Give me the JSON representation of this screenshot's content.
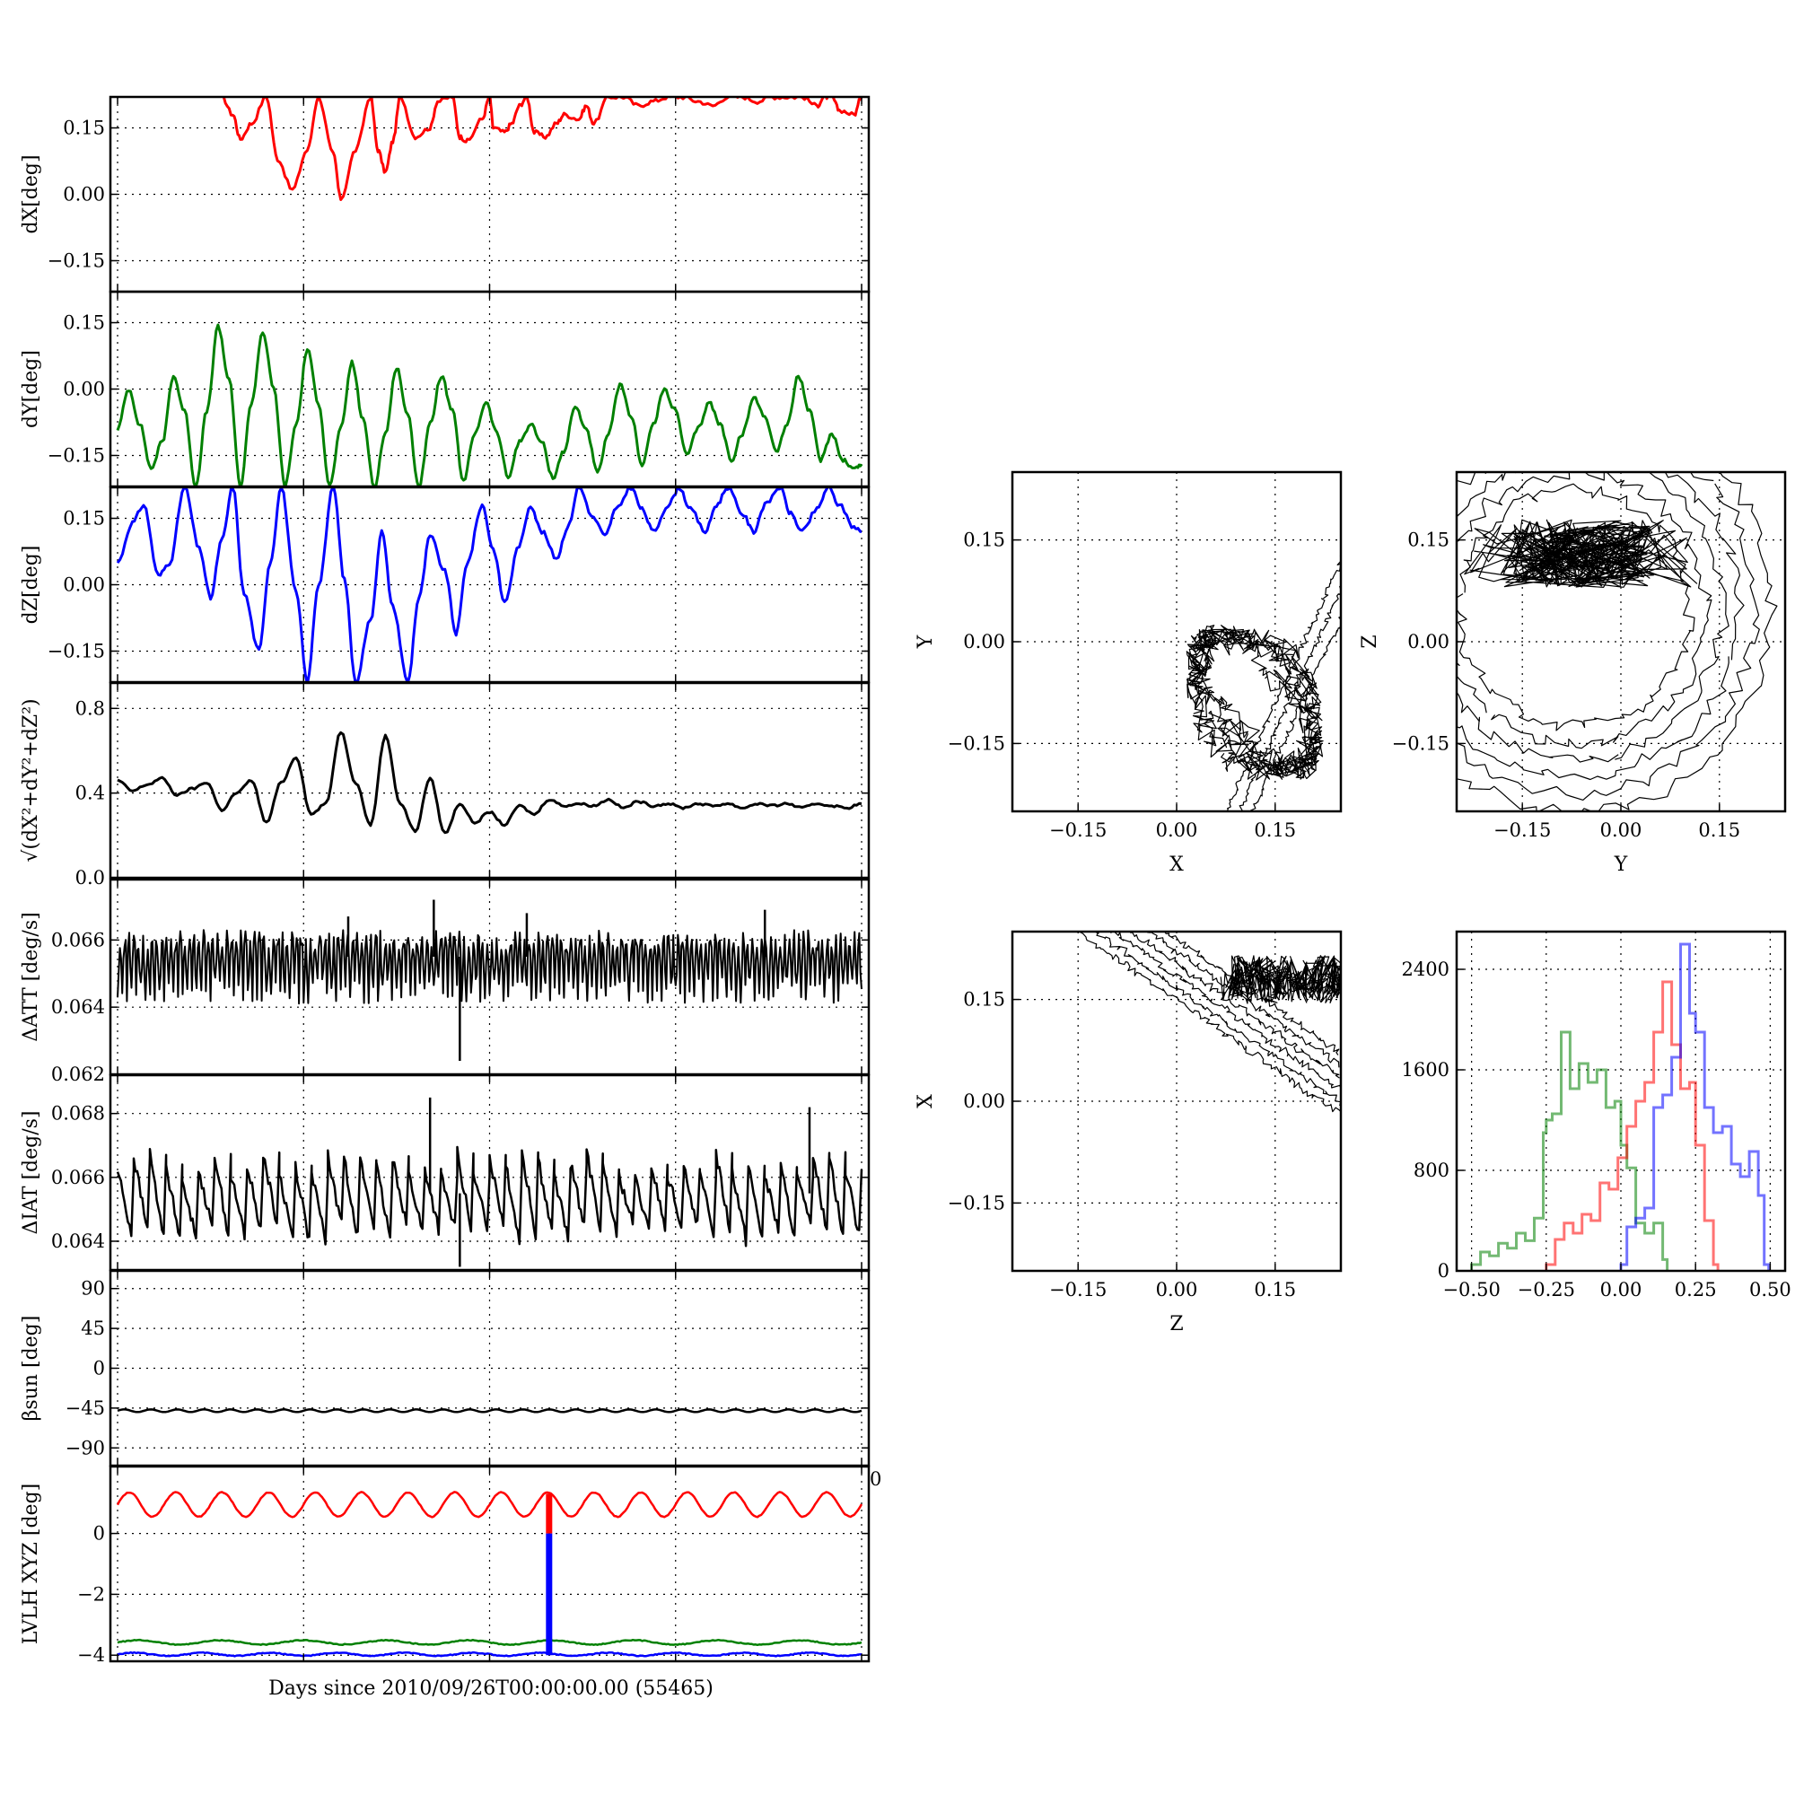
{
  "xlabel": "Days since 2010/09/26T00:00:00.00 (55465)",
  "stray_tick_label": "0",
  "colors": {
    "x": "#ff0000",
    "y": "#008000",
    "z": "#0000ff",
    "k": "#000000"
  },
  "chart_data": [
    {
      "type": "line",
      "id": "dX",
      "ylabel": "dX[deg]",
      "ylim": [
        -0.22,
        0.22
      ],
      "yticks": [
        -0.15,
        0.0,
        0.15
      ],
      "ytick_labels": [
        "−0.15",
        "0.00",
        "0.15"
      ],
      "xlim": [
        0,
        1
      ],
      "grid": true,
      "series": [
        {
          "color_key": "x",
          "x": [
            0.14,
            0.155,
            0.165,
            0.18,
            0.2,
            0.215,
            0.235,
            0.255,
            0.27,
            0.29,
            0.3,
            0.32,
            0.34,
            0.35,
            0.36,
            0.37,
            0.38,
            0.4,
            0.42,
            0.43,
            0.45,
            0.46,
            0.47,
            0.49,
            0.5,
            0.505,
            0.52,
            0.53,
            0.54,
            0.55,
            0.56,
            0.575,
            0.59,
            0.6,
            0.62,
            0.63,
            0.64,
            0.66,
            0.68,
            0.7,
            0.72,
            0.74,
            0.76,
            0.78,
            0.8,
            0.82,
            0.84,
            0.86,
            0.88,
            0.9,
            0.92,
            0.94,
            0.95,
            0.96,
            0.97,
            0.99,
            1.0
          ],
          "y": [
            0.22,
            0.18,
            0.125,
            0.16,
            0.22,
            0.08,
            0.01,
            0.1,
            0.22,
            0.09,
            -0.01,
            0.1,
            0.22,
            0.1,
            0.05,
            0.12,
            0.22,
            0.13,
            0.15,
            0.21,
            0.22,
            0.13,
            0.12,
            0.17,
            0.22,
            0.15,
            0.14,
            0.16,
            0.2,
            0.22,
            0.14,
            0.13,
            0.16,
            0.18,
            0.17,
            0.2,
            0.16,
            0.22,
            0.22,
            0.2,
            0.21,
            0.22,
            0.22,
            0.21,
            0.2,
            0.22,
            0.22,
            0.21,
            0.22,
            0.22,
            0.22,
            0.2,
            0.22,
            0.22,
            0.19,
            0.18,
            0.22
          ]
        }
      ]
    },
    {
      "type": "line",
      "id": "dY",
      "ylabel": "dY[deg]",
      "ylim": [
        -0.22,
        0.22
      ],
      "yticks": [
        -0.15,
        0.0,
        0.15
      ],
      "ytick_labels": [
        "−0.15",
        "0.00",
        "0.15"
      ],
      "xlim": [
        0,
        1
      ],
      "grid": true,
      "series": [
        {
          "color_key": "y",
          "x": [
            0,
            0.015,
            0.03,
            0.045,
            0.06,
            0.075,
            0.09,
            0.105,
            0.12,
            0.135,
            0.15,
            0.165,
            0.18,
            0.195,
            0.21,
            0.225,
            0.24,
            0.255,
            0.27,
            0.285,
            0.3,
            0.315,
            0.33,
            0.345,
            0.36,
            0.375,
            0.39,
            0.405,
            0.42,
            0.435,
            0.45,
            0.465,
            0.48,
            0.495,
            0.51,
            0.525,
            0.54,
            0.555,
            0.57,
            0.585,
            0.6,
            0.615,
            0.63,
            0.645,
            0.66,
            0.675,
            0.69,
            0.705,
            0.72,
            0.735,
            0.75,
            0.765,
            0.78,
            0.795,
            0.81,
            0.825,
            0.84,
            0.855,
            0.87,
            0.885,
            0.9,
            0.915,
            0.93,
            0.945,
            0.96,
            0.975,
            0.99,
            1.0
          ],
          "y": [
            -0.09,
            0.0,
            -0.08,
            -0.18,
            -0.12,
            0.03,
            -0.05,
            -0.22,
            -0.05,
            0.14,
            0.02,
            -0.22,
            -0.03,
            0.13,
            0.0,
            -0.22,
            -0.08,
            0.09,
            -0.03,
            -0.22,
            -0.09,
            0.06,
            -0.07,
            -0.22,
            -0.1,
            0.05,
            -0.06,
            -0.22,
            -0.08,
            0.03,
            -0.05,
            -0.21,
            -0.1,
            -0.03,
            -0.1,
            -0.2,
            -0.12,
            -0.08,
            -0.12,
            -0.2,
            -0.14,
            -0.04,
            -0.09,
            -0.19,
            -0.1,
            0.01,
            -0.06,
            -0.17,
            -0.08,
            0.0,
            -0.05,
            -0.15,
            -0.09,
            -0.03,
            -0.08,
            -0.16,
            -0.1,
            -0.02,
            -0.06,
            -0.14,
            -0.08,
            0.03,
            -0.05,
            -0.16,
            -0.1,
            -0.16,
            -0.18,
            -0.17
          ]
        }
      ]
    },
    {
      "type": "line",
      "id": "dZ",
      "ylabel": "dZ[deg]",
      "ylim": [
        -0.22,
        0.22
      ],
      "yticks": [
        -0.15,
        0.0,
        0.15
      ],
      "ytick_labels": [
        "−0.15",
        "0.00",
        "0.15"
      ],
      "xlim": [
        0,
        1
      ],
      "grid": true,
      "series": [
        {
          "color_key": "z",
          "x": [
            0,
            0.02,
            0.035,
            0.055,
            0.07,
            0.09,
            0.11,
            0.125,
            0.14,
            0.155,
            0.17,
            0.19,
            0.205,
            0.22,
            0.24,
            0.255,
            0.27,
            0.29,
            0.305,
            0.32,
            0.34,
            0.355,
            0.37,
            0.39,
            0.405,
            0.42,
            0.44,
            0.455,
            0.47,
            0.49,
            0.505,
            0.52,
            0.54,
            0.555,
            0.57,
            0.59,
            0.605,
            0.62,
            0.64,
            0.655,
            0.67,
            0.69,
            0.705,
            0.72,
            0.74,
            0.755,
            0.77,
            0.79,
            0.805,
            0.82,
            0.84,
            0.855,
            0.87,
            0.89,
            0.905,
            0.92,
            0.94,
            0.955,
            0.97,
            0.99,
            1.0
          ],
          "y": [
            0.05,
            0.14,
            0.18,
            0.02,
            0.05,
            0.22,
            0.08,
            -0.03,
            0.1,
            0.22,
            -0.02,
            -0.15,
            0.05,
            0.22,
            -0.02,
            -0.22,
            0.0,
            0.22,
            0.01,
            -0.22,
            -0.08,
            0.12,
            -0.05,
            -0.22,
            -0.03,
            0.11,
            0.03,
            -0.11,
            0.05,
            0.18,
            0.08,
            -0.04,
            0.09,
            0.18,
            0.12,
            0.06,
            0.13,
            0.22,
            0.15,
            0.11,
            0.17,
            0.22,
            0.17,
            0.12,
            0.18,
            0.22,
            0.17,
            0.12,
            0.18,
            0.22,
            0.16,
            0.12,
            0.18,
            0.22,
            0.16,
            0.12,
            0.17,
            0.22,
            0.18,
            0.13,
            0.12
          ]
        }
      ]
    },
    {
      "type": "line",
      "id": "dR",
      "ylabel": "√(dX²+dY²+dZ²)",
      "ylim": [
        0.0,
        0.92
      ],
      "yticks": [
        0.0,
        0.4,
        0.8
      ],
      "ytick_labels": [
        "0.0",
        "0.4",
        "0.8"
      ],
      "xlim": [
        0,
        1
      ],
      "grid": true,
      "series": [
        {
          "color_key": "k",
          "x": [
            0,
            0.02,
            0.04,
            0.06,
            0.08,
            0.1,
            0.12,
            0.14,
            0.16,
            0.18,
            0.2,
            0.22,
            0.24,
            0.26,
            0.28,
            0.3,
            0.32,
            0.34,
            0.36,
            0.38,
            0.4,
            0.42,
            0.44,
            0.46,
            0.48,
            0.5,
            0.52,
            0.54,
            0.56,
            0.58,
            0.6,
            0.62,
            0.64,
            0.66,
            0.68,
            0.7,
            0.72,
            0.74,
            0.76,
            0.78,
            0.8,
            0.82,
            0.84,
            0.86,
            0.88,
            0.9,
            0.92,
            0.94,
            0.96,
            0.98,
            1.0
          ],
          "y": [
            0.46,
            0.41,
            0.44,
            0.47,
            0.39,
            0.42,
            0.45,
            0.32,
            0.4,
            0.46,
            0.26,
            0.45,
            0.57,
            0.3,
            0.35,
            0.69,
            0.45,
            0.25,
            0.67,
            0.35,
            0.22,
            0.47,
            0.21,
            0.35,
            0.26,
            0.31,
            0.25,
            0.34,
            0.3,
            0.37,
            0.34,
            0.35,
            0.34,
            0.37,
            0.33,
            0.36,
            0.34,
            0.35,
            0.33,
            0.35,
            0.34,
            0.35,
            0.33,
            0.35,
            0.34,
            0.35,
            0.33,
            0.35,
            0.34,
            0.33,
            0.35
          ]
        }
      ]
    },
    {
      "type": "line",
      "id": "dATT",
      "ylabel": "ΔATT [deg/s]",
      "ylim": [
        0.062,
        0.0678
      ],
      "yticks": [
        0.062,
        0.064,
        0.066
      ],
      "ytick_labels": [
        "0.062",
        "0.064",
        "0.066"
      ],
      "xlim": [
        0,
        1
      ],
      "grid": true,
      "noise": {
        "color_key": "k",
        "center": 0.0655,
        "lower": 0.0641,
        "upper": 0.0663,
        "periods": 160,
        "spikes": [
          [
            0.46,
            0.0624
          ],
          [
            0.425,
            0.0672
          ],
          [
            0.87,
            0.0669
          ],
          [
            0.31,
            0.0667
          ],
          [
            0.55,
            0.0668
          ]
        ]
      }
    },
    {
      "type": "line",
      "id": "dIAT",
      "ylabel": "ΔIAT [deg/s]",
      "ylim": [
        0.0631,
        0.0692
      ],
      "yticks": [
        0.064,
        0.066,
        0.068
      ],
      "ytick_labels": [
        "0.064",
        "0.066",
        "0.068"
      ],
      "xlim": [
        0,
        1
      ],
      "grid": true,
      "sawtooth": {
        "color_key": "k",
        "low": 0.064,
        "high": 0.0668,
        "cycles": 46,
        "spikes": [
          [
            0.46,
            0.0632
          ],
          [
            0.42,
            0.0685
          ],
          [
            0.93,
            0.0682
          ]
        ]
      }
    },
    {
      "type": "line",
      "id": "beta_sun",
      "ylabel": "βsun [deg]",
      "ylim": [
        -110,
        110
      ],
      "yticks": [
        -90,
        -45,
        0,
        45,
        90
      ],
      "ytick_labels": [
        "−90",
        "−45",
        "0",
        "45",
        "90"
      ],
      "xlim": [
        0,
        1
      ],
      "grid": true,
      "wave": {
        "color_key": "k",
        "mean": -48,
        "amp": 1.5,
        "cycles": 28
      }
    },
    {
      "type": "line",
      "id": "LVLH",
      "ylabel": "LVLH XYZ [deg]",
      "ylim": [
        -4.2,
        2.2
      ],
      "yticks": [
        -4,
        -2,
        0
      ],
      "ytick_labels": [
        "−4",
        "−2",
        "0"
      ],
      "xlim": [
        0,
        1
      ],
      "grid": true,
      "waves": [
        {
          "color_key": "x",
          "mean": 0.95,
          "amp": 0.4,
          "cycles": 16
        },
        {
          "color_key": "y",
          "mean": -3.58,
          "amp": 0.07,
          "cycles": 9
        },
        {
          "color_key": "z",
          "mean": -3.97,
          "amp": 0.05,
          "cycles": 11
        }
      ],
      "vline": {
        "x": 0.58,
        "upper": [
          1.3,
          0.0
        ],
        "lower": [
          0.0,
          -4.0
        ]
      }
    },
    {
      "type": "scatter",
      "id": "XY",
      "xlabel": "X",
      "ylabel": "Y",
      "xlim": [
        -0.25,
        0.25
      ],
      "ylim": [
        -0.25,
        0.25
      ],
      "ticks": [
        -0.15,
        0.0,
        0.15
      ],
      "tick_labels": [
        "−0.15",
        "0.00",
        "0.15"
      ],
      "grid": true,
      "trace": {
        "color_key": "k",
        "style": "band-right"
      }
    },
    {
      "type": "scatter",
      "id": "YZ",
      "xlabel": "Y",
      "ylabel": "Z",
      "xlim": [
        -0.25,
        0.25
      ],
      "ylim": [
        -0.25,
        0.25
      ],
      "ticks": [
        -0.15,
        0.0,
        0.15
      ],
      "tick_labels": [
        "−0.15",
        "0.00",
        "0.15"
      ],
      "grid": true,
      "trace": {
        "color_key": "k",
        "style": "loops"
      }
    },
    {
      "type": "scatter",
      "id": "ZX",
      "xlabel": "Z",
      "ylabel": "X",
      "xlim": [
        -0.25,
        0.25
      ],
      "ylim": [
        -0.25,
        0.25
      ],
      "ticks": [
        -0.15,
        0.0,
        0.15
      ],
      "tick_labels": [
        "−0.15",
        "0.00",
        "0.15"
      ],
      "grid": true,
      "trace": {
        "color_key": "k",
        "style": "diagonal"
      }
    },
    {
      "type": "bar",
      "id": "hist",
      "xlim": [
        -0.55,
        0.55
      ],
      "ylim": [
        0,
        2700
      ],
      "xticks": [
        -0.5,
        -0.25,
        0.0,
        0.25,
        0.5
      ],
      "xtick_labels": [
        "−0.50",
        "−0.25",
        "0.00",
        "0.25",
        "0.50"
      ],
      "yticks": [
        0,
        800,
        1600,
        2400
      ],
      "ytick_labels": [
        "0",
        "800",
        "1600",
        "2400"
      ],
      "grid": true,
      "series": [
        {
          "color_key": "y",
          "x": [
            -0.5,
            -0.47,
            -0.44,
            -0.41,
            -0.38,
            -0.35,
            -0.32,
            -0.29,
            -0.26,
            -0.25,
            -0.23,
            -0.2,
            -0.17,
            -0.14,
            -0.11,
            -0.08,
            -0.05,
            -0.02,
            0.0,
            0.02,
            0.05,
            0.08,
            0.11,
            0.14
          ],
          "values": [
            50,
            150,
            120,
            220,
            180,
            300,
            240,
            420,
            1100,
            1200,
            1250,
            1900,
            1450,
            1650,
            1500,
            1600,
            1300,
            1350,
            1000,
            820,
            380,
            300,
            380,
            90
          ]
        },
        {
          "color_key": "x",
          "x": [
            -0.25,
            -0.22,
            -0.19,
            -0.16,
            -0.13,
            -0.1,
            -0.07,
            -0.04,
            -0.01,
            0.02,
            0.05,
            0.08,
            0.11,
            0.14,
            0.17,
            0.2,
            0.23,
            0.25,
            0.28,
            0.31
          ],
          "values": [
            50,
            250,
            380,
            300,
            450,
            400,
            700,
            650,
            900,
            1150,
            1350,
            1500,
            1900,
            2300,
            1800,
            1450,
            1500,
            1000,
            400,
            50
          ]
        },
        {
          "color_key": "z",
          "x": [
            0.0,
            0.02,
            0.05,
            0.08,
            0.11,
            0.14,
            0.17,
            0.2,
            0.23,
            0.25,
            0.28,
            0.31,
            0.34,
            0.37,
            0.4,
            0.43,
            0.46,
            0.48
          ],
          "values": [
            50,
            350,
            420,
            500,
            1300,
            1400,
            1700,
            2600,
            2050,
            1900,
            1300,
            1100,
            1150,
            850,
            750,
            950,
            600,
            50
          ]
        }
      ]
    }
  ]
}
